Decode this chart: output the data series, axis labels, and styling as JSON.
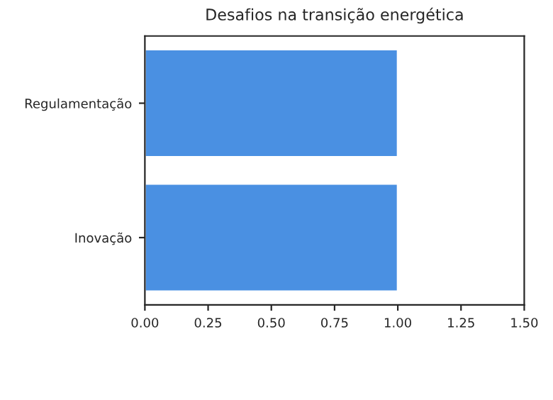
{
  "chart_data": {
    "type": "bar",
    "orientation": "horizontal",
    "title": "Desafios na transição energética",
    "categories": [
      "Regulamentação",
      "Inovação"
    ],
    "values": [
      1.0,
      1.0
    ],
    "color": "#4a90e2",
    "xlim": [
      0,
      1.5
    ],
    "xticks": [
      {
        "value": 0,
        "label": "0.00"
      },
      0.25,
      {
        "value": 0.5,
        "label": "0.50"
      },
      0.75,
      {
        "value": 1,
        "label": "1.00"
      },
      1.25,
      {
        "value": 1.5,
        "label": "1.50"
      }
    ]
  }
}
